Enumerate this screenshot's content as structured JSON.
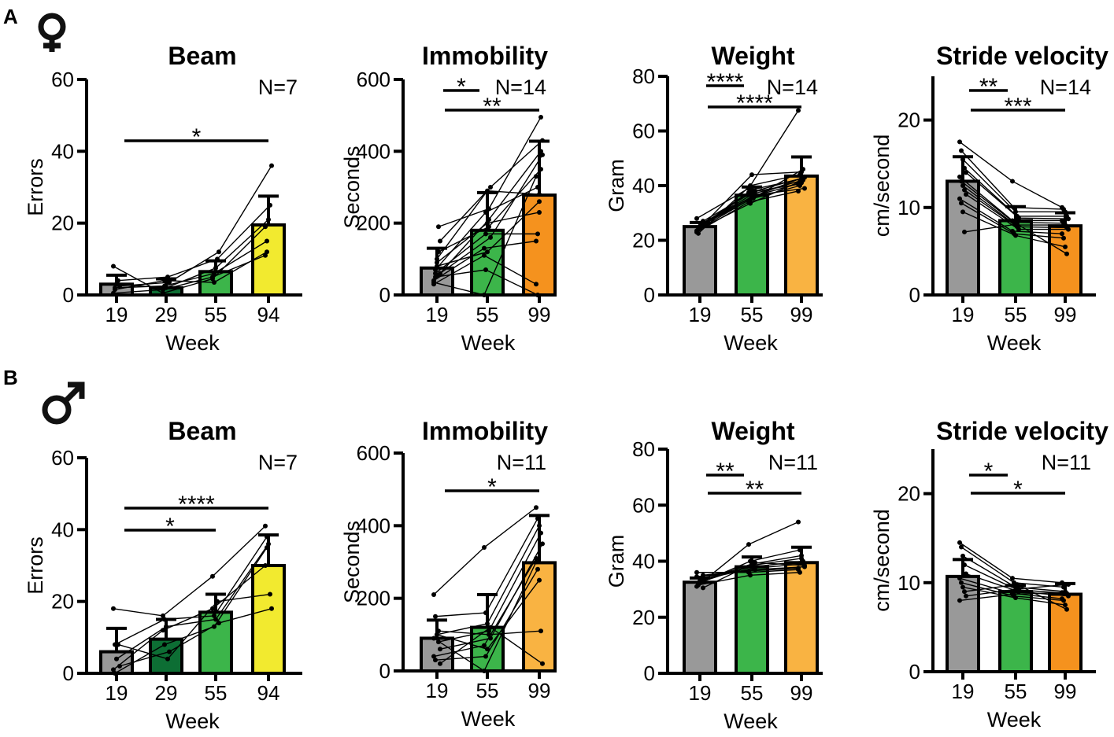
{
  "rows": [
    {
      "label": "A",
      "symbol": "female-symbol"
    },
    {
      "label": "B",
      "symbol": "male-symbol"
    }
  ],
  "chart_data": [
    {
      "id": "A-beam",
      "type": "bar",
      "title": "Beam",
      "ylabel": "Errors",
      "xlabel": "Week",
      "categories": [
        "19",
        "29",
        "55",
        "94"
      ],
      "colors": [
        "#999999",
        "#0d6e34",
        "#3cb54a",
        "#f2ea2f"
      ],
      "ylim": [
        0,
        60
      ],
      "yticks": [
        0,
        20,
        40,
        60
      ],
      "n_label": "N=7",
      "values": [
        3,
        2,
        6.5,
        19.5
      ],
      "errors": [
        2.5,
        2.5,
        3,
        8
      ],
      "points": [
        [
          0.5,
          2,
          3,
          4,
          2.5,
          8,
          1.5
        ],
        [
          1.5,
          2.5,
          2,
          5,
          3.5,
          0.5,
          4
        ],
        [
          5,
          6,
          7.5,
          10,
          12,
          4.5,
          3.5
        ],
        [
          11,
          15,
          21,
          25,
          36,
          19,
          12
        ]
      ],
      "significance": [
        {
          "from": 0,
          "to": 3,
          "label": "*"
        }
      ]
    },
    {
      "id": "A-immobility",
      "type": "bar",
      "title": "Immobility",
      "ylabel": "Seconds",
      "xlabel": "Week",
      "categories": [
        "19",
        "55",
        "99"
      ],
      "colors": [
        "#999999",
        "#3cb54a",
        "#f5921e"
      ],
      "ylim": [
        0,
        600
      ],
      "yticks": [
        0,
        200,
        400,
        600
      ],
      "n_label": "N=14",
      "values": [
        75,
        180,
        278
      ],
      "errors": [
        55,
        105,
        150
      ],
      "points": [
        [
          40,
          60,
          100,
          190,
          150,
          30,
          50,
          80,
          120,
          60,
          35,
          70,
          90,
          55
        ],
        [
          130,
          170,
          290,
          240,
          300,
          110,
          70,
          120,
          190,
          160,
          0,
          230,
          200,
          210
        ],
        [
          150,
          170,
          280,
          495,
          430,
          30,
          0,
          260,
          350,
          390,
          330,
          300,
          230,
          400
        ]
      ],
      "significance": [
        {
          "from": 0,
          "to": 1,
          "label": "*"
        },
        {
          "from": 0,
          "to": 2,
          "label": "**"
        }
      ]
    },
    {
      "id": "A-weight",
      "type": "bar",
      "title": "Weight",
      "ylabel": "Gram",
      "xlabel": "Week",
      "categories": [
        "19",
        "55",
        "99"
      ],
      "colors": [
        "#999999",
        "#3cb54a",
        "#f9b342"
      ],
      "ylim": [
        0,
        80
      ],
      "yticks": [
        0,
        20,
        40,
        60,
        80
      ],
      "n_label": "N=14",
      "values": [
        25,
        36.5,
        43.5
      ],
      "errors": [
        1.5,
        3,
        7
      ],
      "points": [
        [
          23,
          24,
          25,
          26,
          27,
          28,
          22.5,
          24.5,
          25.5,
          26.5,
          23.5,
          24,
          25,
          26
        ],
        [
          34,
          35,
          36,
          37,
          38,
          39,
          40,
          44,
          35.5,
          36.5,
          37.5,
          33.5,
          38.5,
          36
        ],
        [
          38,
          40,
          41,
          42,
          43,
          67.5,
          44,
          45,
          46,
          39,
          40.5,
          41.5,
          42.5,
          43
        ]
      ],
      "significance": [
        {
          "from": 0,
          "to": 1,
          "label": "****"
        },
        {
          "from": 0,
          "to": 2,
          "label": "****"
        }
      ]
    },
    {
      "id": "A-stride",
      "type": "bar",
      "title": "Stride velocity",
      "ylabel": "cm/second",
      "xlabel": "Week",
      "categories": [
        "19",
        "55",
        "99"
      ],
      "colors": [
        "#999999",
        "#3cb54a",
        "#f5921e"
      ],
      "ylim": [
        0,
        25
      ],
      "yticks": [
        0,
        10,
        20
      ],
      "n_label": "N=14",
      "values": [
        13,
        8.5,
        7.9
      ],
      "errors": [
        2.8,
        1.6,
        1.5
      ],
      "points": [
        [
          17.5,
          16.5,
          15.5,
          14.5,
          14,
          13.5,
          13,
          12.5,
          12,
          11.5,
          11,
          10.5,
          9.5,
          7.2
        ],
        [
          13,
          10,
          9.5,
          9,
          8.8,
          8.5,
          8.3,
          8,
          7.8,
          7.5,
          7.3,
          7,
          6.8,
          8.1
        ],
        [
          10,
          9.8,
          9.5,
          9,
          8.7,
          8.5,
          8.2,
          8,
          7.7,
          7.5,
          7,
          6.5,
          5.5,
          4.7
        ]
      ],
      "significance": [
        {
          "from": 0,
          "to": 1,
          "label": "**"
        },
        {
          "from": 0,
          "to": 2,
          "label": "***"
        }
      ]
    },
    {
      "id": "B-beam",
      "type": "bar",
      "title": "Beam",
      "ylabel": "Errors",
      "xlabel": "Week",
      "categories": [
        "19",
        "29",
        "55",
        "94"
      ],
      "colors": [
        "#999999",
        "#0d6e34",
        "#3cb54a",
        "#f2ea2f"
      ],
      "ylim": [
        0,
        60
      ],
      "yticks": [
        0,
        20,
        40,
        60
      ],
      "n_label": "N=7",
      "values": [
        6,
        9.5,
        17,
        30
      ],
      "errors": [
        6.5,
        5.5,
        5,
        8.5
      ],
      "points": [
        [
          18,
          0,
          4,
          8,
          2,
          1,
          8
        ],
        [
          16,
          8,
          13,
          4,
          6,
          12,
          15
        ],
        [
          27,
          13,
          15,
          20,
          14,
          18,
          16
        ],
        [
          41,
          35,
          36,
          22,
          18,
          30,
          38
        ]
      ],
      "significance": [
        {
          "from": 0,
          "to": 2,
          "label": "*"
        },
        {
          "from": 0,
          "to": 3,
          "label": "****"
        }
      ]
    },
    {
      "id": "B-immobility",
      "type": "bar",
      "title": "Immobility",
      "ylabel": "Seconds",
      "xlabel": "Week",
      "categories": [
        "19",
        "55",
        "99"
      ],
      "colors": [
        "#999999",
        "#3cb54a",
        "#f9b342"
      ],
      "ylim": [
        0,
        600
      ],
      "yticks": [
        0,
        200,
        400,
        600
      ],
      "n_label": "N=11",
      "values": [
        90,
        120,
        298
      ],
      "errors": [
        50,
        90,
        130
      ],
      "points": [
        [
          210,
          150,
          100,
          80,
          60,
          40,
          30,
          100,
          110,
          20,
          90
        ],
        [
          340,
          160,
          130,
          110,
          90,
          70,
          40,
          60,
          100,
          120,
          0
        ],
        [
          450,
          420,
          400,
          380,
          350,
          310,
          280,
          250,
          110,
          20,
          300
        ]
      ],
      "significance": [
        {
          "from": 0,
          "to": 2,
          "label": "*"
        }
      ]
    },
    {
      "id": "B-weight",
      "type": "bar",
      "title": "Weight",
      "ylabel": "Gram",
      "xlabel": "Week",
      "categories": [
        "19",
        "55",
        "99"
      ],
      "colors": [
        "#999999",
        "#3cb54a",
        "#f9b342"
      ],
      "ylim": [
        0,
        80
      ],
      "yticks": [
        0,
        20,
        40,
        60,
        80
      ],
      "n_label": "N=11",
      "values": [
        32.5,
        38,
        39.5
      ],
      "errors": [
        1.5,
        3.5,
        5.5
      ],
      "points": [
        [
          31,
          32,
          33,
          34,
          35,
          36,
          31.5,
          32.5,
          33.5,
          30.5,
          34.5
        ],
        [
          46,
          40,
          39,
          38,
          37,
          36,
          35,
          38.5,
          37.5,
          39.5,
          36.5
        ],
        [
          54,
          44,
          42,
          40,
          38,
          37,
          36,
          41,
          39,
          38.5,
          37.5
        ]
      ],
      "significance": [
        {
          "from": 0,
          "to": 1,
          "label": "**"
        },
        {
          "from": 0,
          "to": 2,
          "label": "**"
        }
      ]
    },
    {
      "id": "B-stride",
      "type": "bar",
      "title": "Stride velocity",
      "ylabel": "cm/second",
      "xlabel": "Week",
      "categories": [
        "19",
        "55",
        "99"
      ],
      "colors": [
        "#999999",
        "#3cb54a",
        "#f5921e"
      ],
      "ylim": [
        0,
        25
      ],
      "yticks": [
        0,
        10,
        20
      ],
      "n_label": "N=11",
      "values": [
        10.7,
        9,
        8.7
      ],
      "errors": [
        1.9,
        0.7,
        1.2
      ],
      "points": [
        [
          14.5,
          14,
          13,
          12,
          11,
          10.5,
          10,
          9.5,
          9,
          8.5,
          8
        ],
        [
          10.5,
          10,
          9.5,
          9.2,
          9,
          8.8,
          8.5,
          8.3,
          9.8,
          9.3,
          8.7
        ],
        [
          10,
          9.5,
          9,
          8.8,
          8.5,
          8.2,
          8,
          7.5,
          7,
          9.8,
          8.9
        ]
      ],
      "significance": [
        {
          "from": 0,
          "to": 1,
          "label": "*"
        },
        {
          "from": 0,
          "to": 2,
          "label": "*"
        }
      ]
    }
  ]
}
